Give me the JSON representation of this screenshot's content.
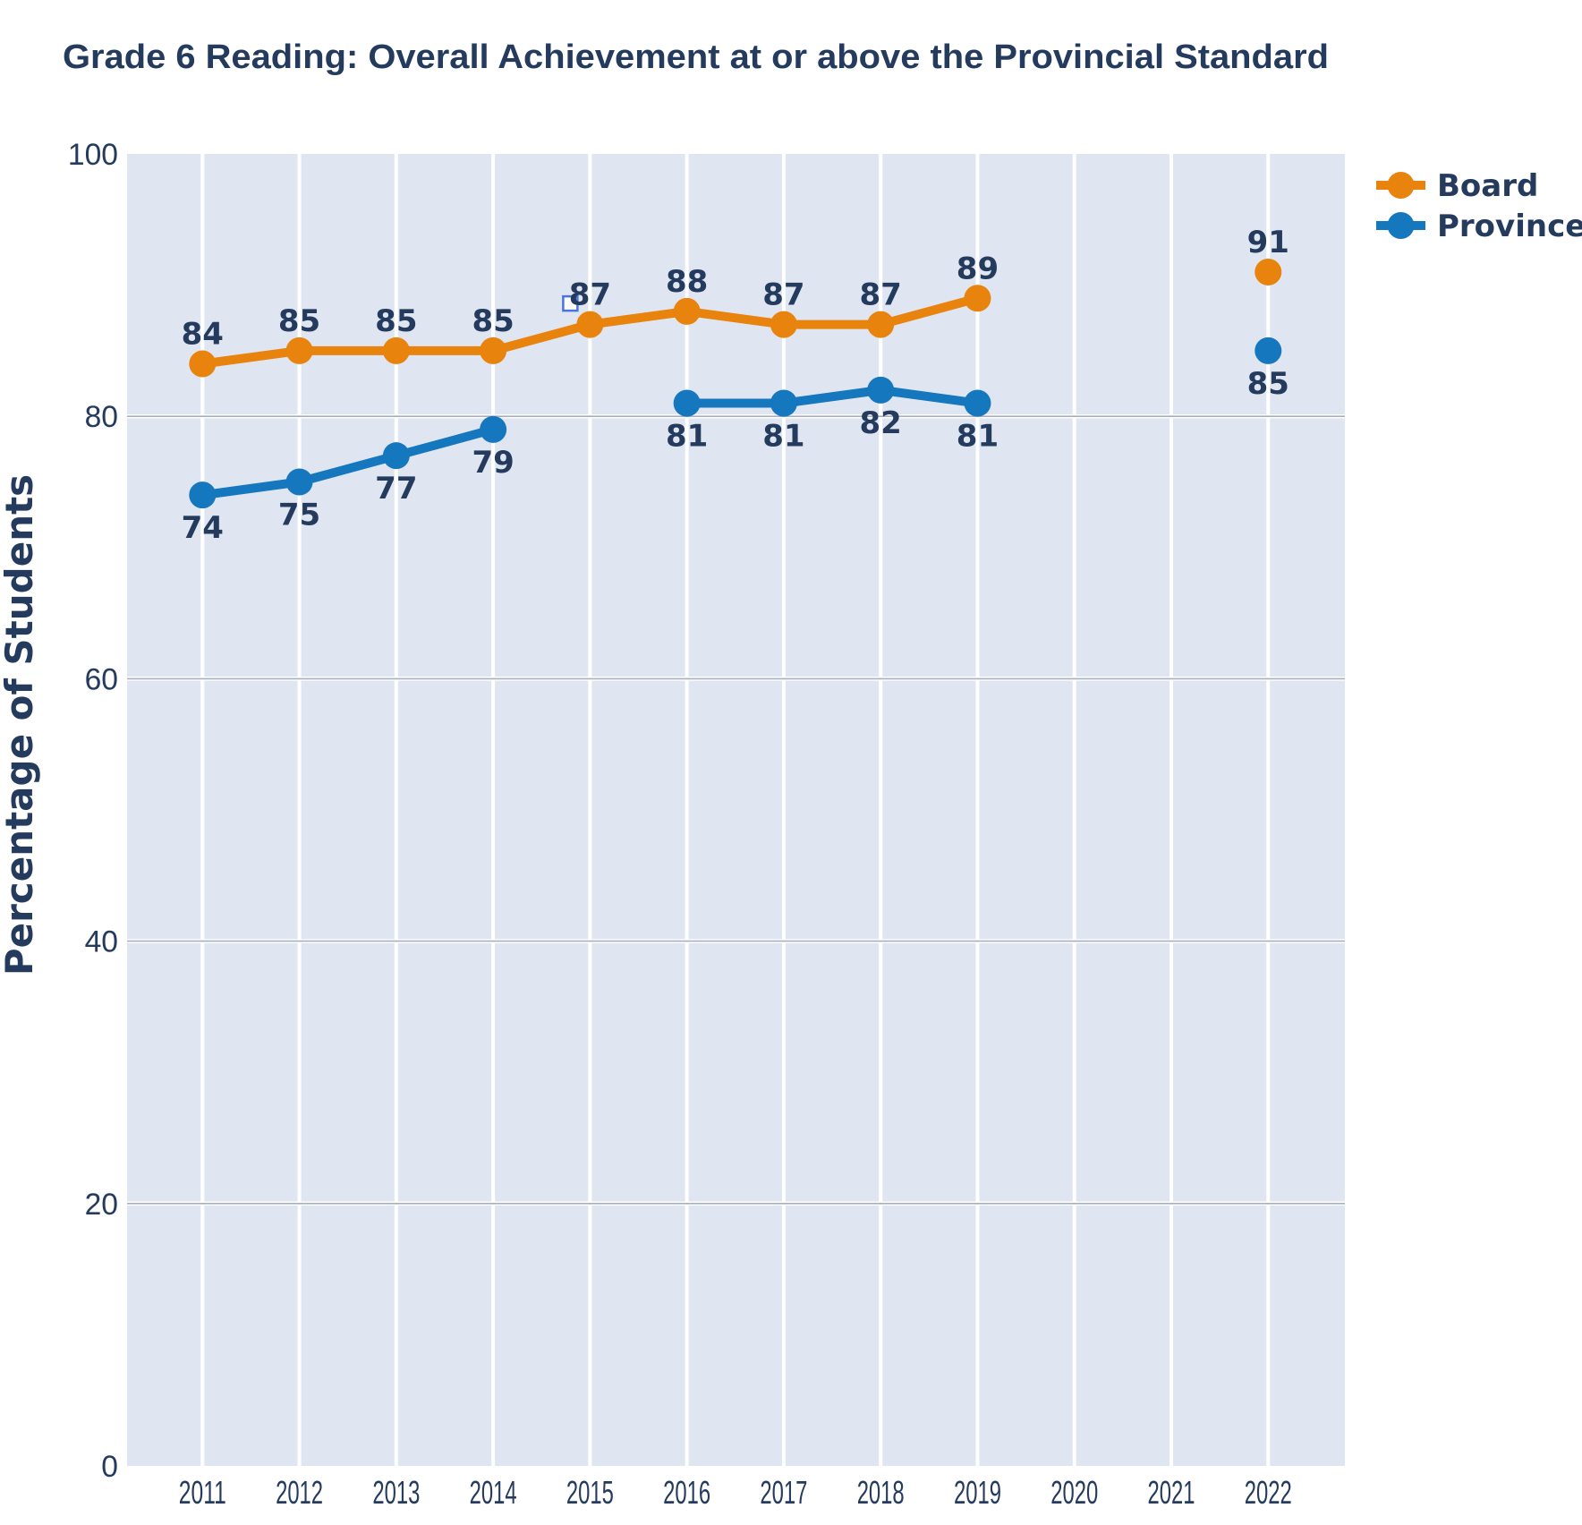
{
  "chart_data": {
    "type": "line",
    "title": "Grade 6 Reading: Overall Achievement at or above the Provincial Standard",
    "ylabel": "Percentage of Students",
    "xlabel": "",
    "categories": [
      "2011",
      "2012",
      "2013",
      "2014",
      "2015",
      "2016",
      "2017",
      "2018",
      "2019",
      "2020",
      "2021",
      "2022"
    ],
    "series": [
      {
        "name": "Board",
        "color": "#E8830D",
        "label_position": "above",
        "values": [
          84,
          85,
          85,
          85,
          87,
          88,
          87,
          87,
          89,
          null,
          null,
          91
        ]
      },
      {
        "name": "Province",
        "color": "#1577BE",
        "label_position": "below",
        "values": [
          74,
          75,
          77,
          79,
          null,
          81,
          81,
          82,
          81,
          null,
          null,
          85
        ]
      }
    ],
    "ylim": [
      0,
      100
    ],
    "yticks": [
      0,
      20,
      40,
      60,
      80,
      100
    ],
    "grid": {
      "vertical": true,
      "horizontal": true
    },
    "legend_position": "top-right",
    "annotations": [
      {
        "type": "small-square-marker",
        "near_category": "2015",
        "value": 88.6
      }
    ]
  },
  "colors": {
    "page_background": "#FFFFFF",
    "plot_background": "#E0E6F1",
    "text_navy": "#243B5E",
    "grid_vertical": "#FFFFFF",
    "grid_horizontal_band": "#FFFFFF",
    "grid_horizontal_core": "#A9AFBC",
    "annotation_square_border": "#4A73E0",
    "board_orange": "#E8830D",
    "province_blue": "#1577BE"
  }
}
